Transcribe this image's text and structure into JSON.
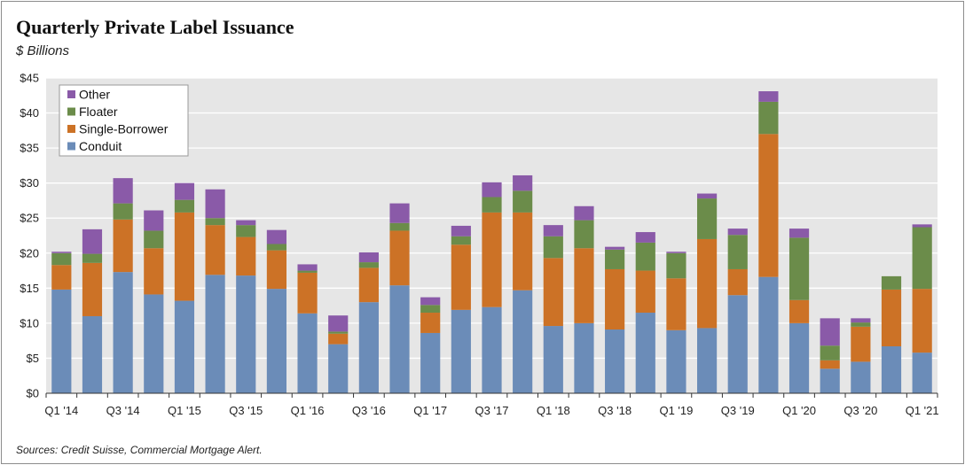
{
  "chart_data": {
    "type": "bar",
    "stacked": true,
    "title": "Quarterly Private Label Issuance",
    "subtitle": "$ Billions",
    "source": "Sources: Credit Suisse, Commercial Mortgage Alert.",
    "ylim": [
      0,
      45
    ],
    "yticks": [
      0,
      5,
      10,
      15,
      20,
      25,
      30,
      35,
      40,
      45
    ],
    "ytick_labels": [
      "$0",
      "$5",
      "$10",
      "$15",
      "$20",
      "$25",
      "$30",
      "$35",
      "$40",
      "$45"
    ],
    "grid": true,
    "legend_position": "top-left",
    "categories": [
      "Q1 '14",
      "Q2 '14",
      "Q3 '14",
      "Q4 '14",
      "Q1 '15",
      "Q2 '15",
      "Q3 '15",
      "Q4 '15",
      "Q1 '16",
      "Q2 '16",
      "Q3 '16",
      "Q4 '16",
      "Q1 '17",
      "Q2 '17",
      "Q3 '17",
      "Q4 '17",
      "Q1 '18",
      "Q2 '18",
      "Q3 '18",
      "Q4 '18",
      "Q1 '19",
      "Q2 '19",
      "Q3 '19",
      "Q4 '19",
      "Q1 '20",
      "Q2 '20",
      "Q3 '20",
      "Q4 '20",
      "Q1 '21"
    ],
    "xtick_labels": [
      {
        "index": 0,
        "label": "Q1 '14"
      },
      {
        "index": 2,
        "label": "Q3 '14"
      },
      {
        "index": 4,
        "label": "Q1 '15"
      },
      {
        "index": 6,
        "label": "Q3 '15"
      },
      {
        "index": 8,
        "label": "Q1 '16"
      },
      {
        "index": 10,
        "label": "Q3 '16"
      },
      {
        "index": 12,
        "label": "Q1 '17"
      },
      {
        "index": 14,
        "label": "Q3 '17"
      },
      {
        "index": 16,
        "label": "Q1 '18"
      },
      {
        "index": 18,
        "label": "Q3 '18"
      },
      {
        "index": 20,
        "label": "Q1 '19"
      },
      {
        "index": 22,
        "label": "Q3 '19"
      },
      {
        "index": 24,
        "label": "Q1 '20"
      },
      {
        "index": 26,
        "label": "Q3 '20"
      },
      {
        "index": 28,
        "label": "Q1 '21"
      }
    ],
    "series": [
      {
        "name": "Conduit",
        "color": "#6b8cb8",
        "values": [
          14.8,
          11.0,
          17.3,
          14.1,
          13.2,
          16.9,
          16.8,
          14.9,
          11.4,
          7.0,
          13.0,
          15.4,
          8.6,
          11.9,
          12.3,
          14.7,
          9.6,
          10.0,
          9.1,
          11.5,
          9.0,
          9.3,
          14.0,
          16.6,
          10.0,
          3.5,
          4.5,
          6.7,
          5.8
        ]
      },
      {
        "name": "Single-Borrower",
        "color": "#cc7226",
        "values": [
          3.5,
          7.6,
          7.5,
          6.6,
          12.6,
          7.1,
          5.5,
          5.5,
          5.8,
          1.5,
          4.9,
          7.8,
          2.9,
          9.3,
          13.5,
          11.1,
          9.7,
          10.7,
          8.6,
          6.0,
          7.4,
          12.7,
          3.7,
          20.4,
          3.3,
          1.2,
          5.0,
          8.1,
          9.1
        ]
      },
      {
        "name": "Floater",
        "color": "#6b8c4a",
        "values": [
          1.7,
          1.3,
          2.3,
          2.5,
          1.8,
          1.0,
          1.7,
          0.9,
          0.3,
          0.3,
          0.8,
          1.1,
          1.1,
          1.2,
          2.2,
          3.1,
          3.1,
          4.0,
          2.8,
          4.0,
          3.6,
          5.8,
          4.9,
          4.6,
          8.9,
          2.1,
          0.6,
          1.9,
          8.8
        ]
      },
      {
        "name": "Other",
        "color": "#8a5aa8",
        "values": [
          0.2,
          3.5,
          3.6,
          2.9,
          2.4,
          4.1,
          0.7,
          2.0,
          0.9,
          2.3,
          1.4,
          2.8,
          1.1,
          1.5,
          2.1,
          2.2,
          1.6,
          2.0,
          0.4,
          1.5,
          0.2,
          0.7,
          0.9,
          1.5,
          1.3,
          3.9,
          0.6,
          0.0,
          0.4
        ]
      }
    ],
    "legend_order": [
      "Other",
      "Floater",
      "Single-Borrower",
      "Conduit"
    ]
  },
  "style": {
    "plot_background": "#e6e6e6",
    "grid_color": "#ffffff",
    "axis_color": "#333333"
  }
}
